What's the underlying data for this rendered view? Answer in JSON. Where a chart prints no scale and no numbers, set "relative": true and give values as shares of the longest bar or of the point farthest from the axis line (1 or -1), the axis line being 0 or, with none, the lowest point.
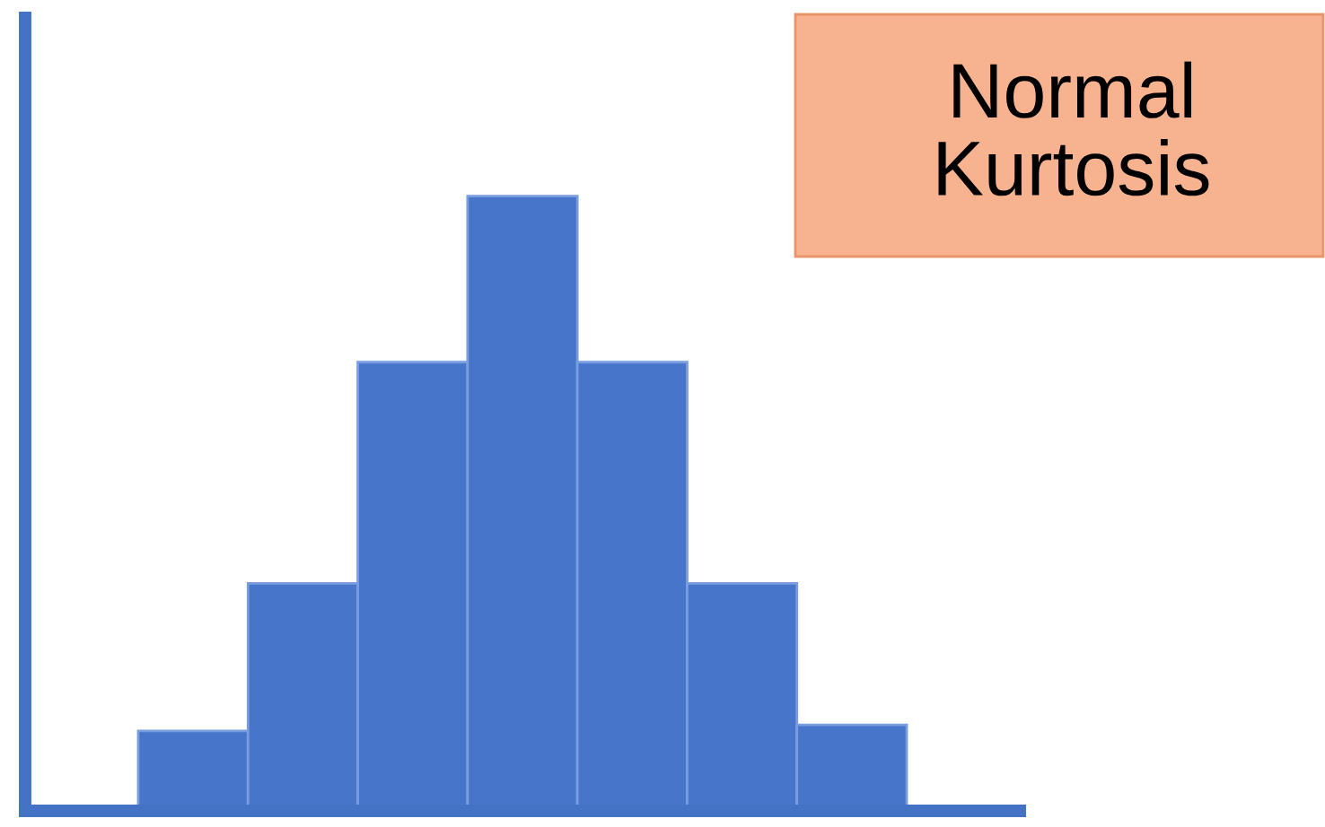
{
  "chart_data": {
    "type": "bar",
    "title": "Normal\nKurtosis",
    "relative": true,
    "categories": [
      null,
      null,
      null,
      null,
      null,
      null,
      null
    ],
    "values": [
      0.13,
      0.37,
      0.73,
      1,
      0.73,
      0.37,
      0.14
    ],
    "color": "#4775c9",
    "grid": false,
    "legend": false
  }
}
